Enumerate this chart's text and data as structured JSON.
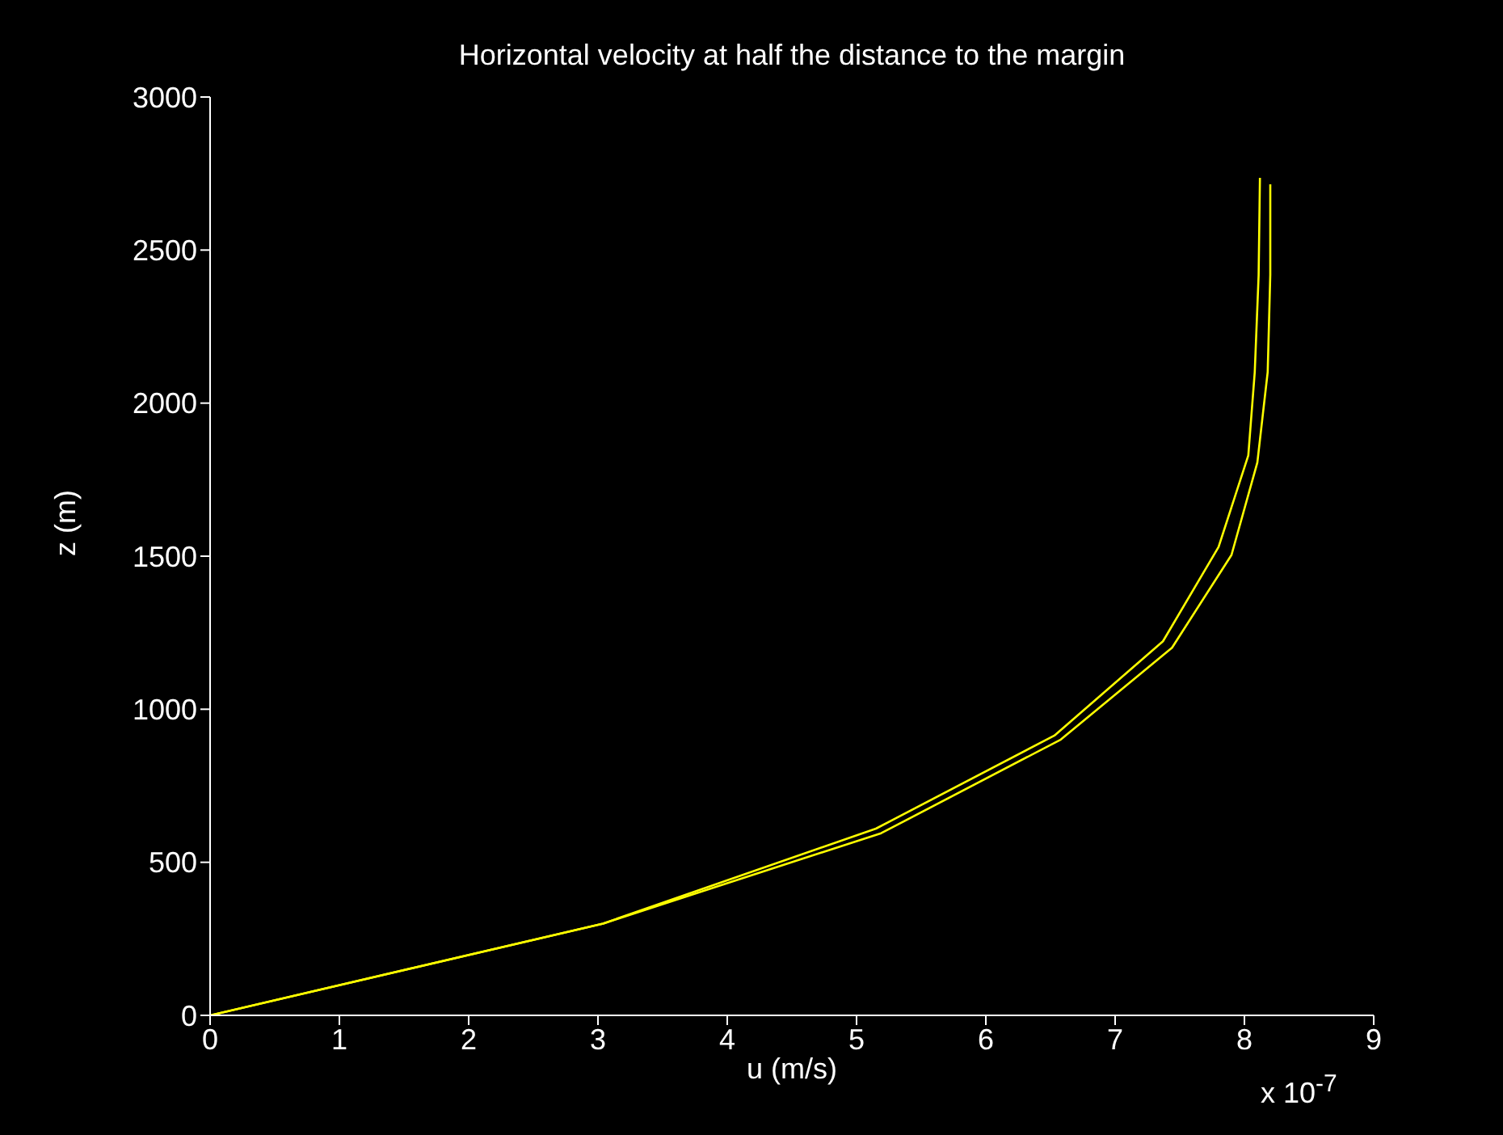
{
  "chart_data": {
    "type": "line",
    "title": "Horizontal velocity at half the distance to the margin",
    "xlabel": "u (m/s)",
    "ylabel": "z (m)",
    "annotations": [
      "x 10$^{-7}$"
    ],
    "series": [
      {
        "color": "#ffff00",
        "x": [
          0,
          3.04,
          5.15,
          6.53,
          7.37,
          7.8,
          8.03,
          8.08,
          8.11,
          8.12
        ],
        "values": [
          0,
          300,
          610,
          914,
          1222,
          1530,
          1829,
          2102,
          2419,
          2736
        ]
      },
      {
        "color": "#ffff00",
        "x": [
          0,
          3.04,
          5.19,
          6.58,
          7.44,
          7.9,
          8.1,
          8.18,
          8.2,
          8.2
        ],
        "values": [
          0,
          300,
          595,
          901,
          1201,
          1504,
          1806,
          2102,
          2419,
          2715
        ]
      }
    ],
    "xlim": [
      0,
      9
    ],
    "xticks": [
      0,
      1,
      2,
      3,
      4,
      5,
      6,
      7,
      8,
      9
    ],
    "ylim": [
      0,
      3000
    ],
    "yticks": [
      0,
      500,
      1000,
      1500,
      2000,
      2500,
      3000
    ],
    "marker": "none",
    "line_style": "solid"
  }
}
